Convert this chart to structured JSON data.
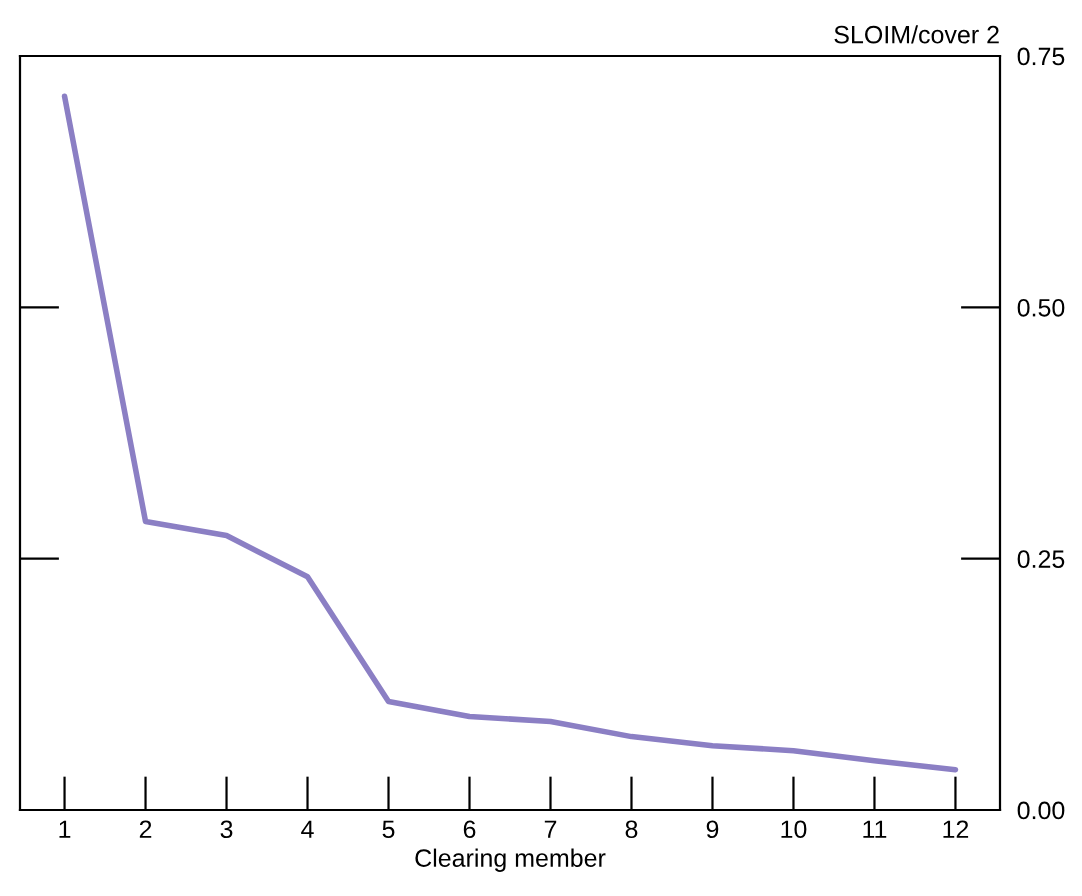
{
  "chart_data": {
    "type": "line",
    "xlabel": "Clearing member",
    "ylabel": "SLOIM/cover 2",
    "categories": [
      "1",
      "2",
      "3",
      "4",
      "5",
      "6",
      "7",
      "8",
      "9",
      "10",
      "11",
      "12"
    ],
    "series": [
      {
        "color": "#8b7fc4",
        "values": [
          0.71,
          0.287,
          0.273,
          0.232,
          0.108,
          0.093,
          0.088,
          0.073,
          0.064,
          0.059,
          0.049,
          0.04
        ]
      }
    ],
    "ylim": [
      0,
      0.75
    ],
    "yticks": [
      {
        "value": 0,
        "label": "0.00"
      },
      {
        "value": 0.25,
        "label": "0.25"
      },
      {
        "value": 0.5,
        "label": "0.50"
      },
      {
        "value": 0.75,
        "label": "0.75"
      }
    ],
    "grid": false,
    "legend": false
  }
}
